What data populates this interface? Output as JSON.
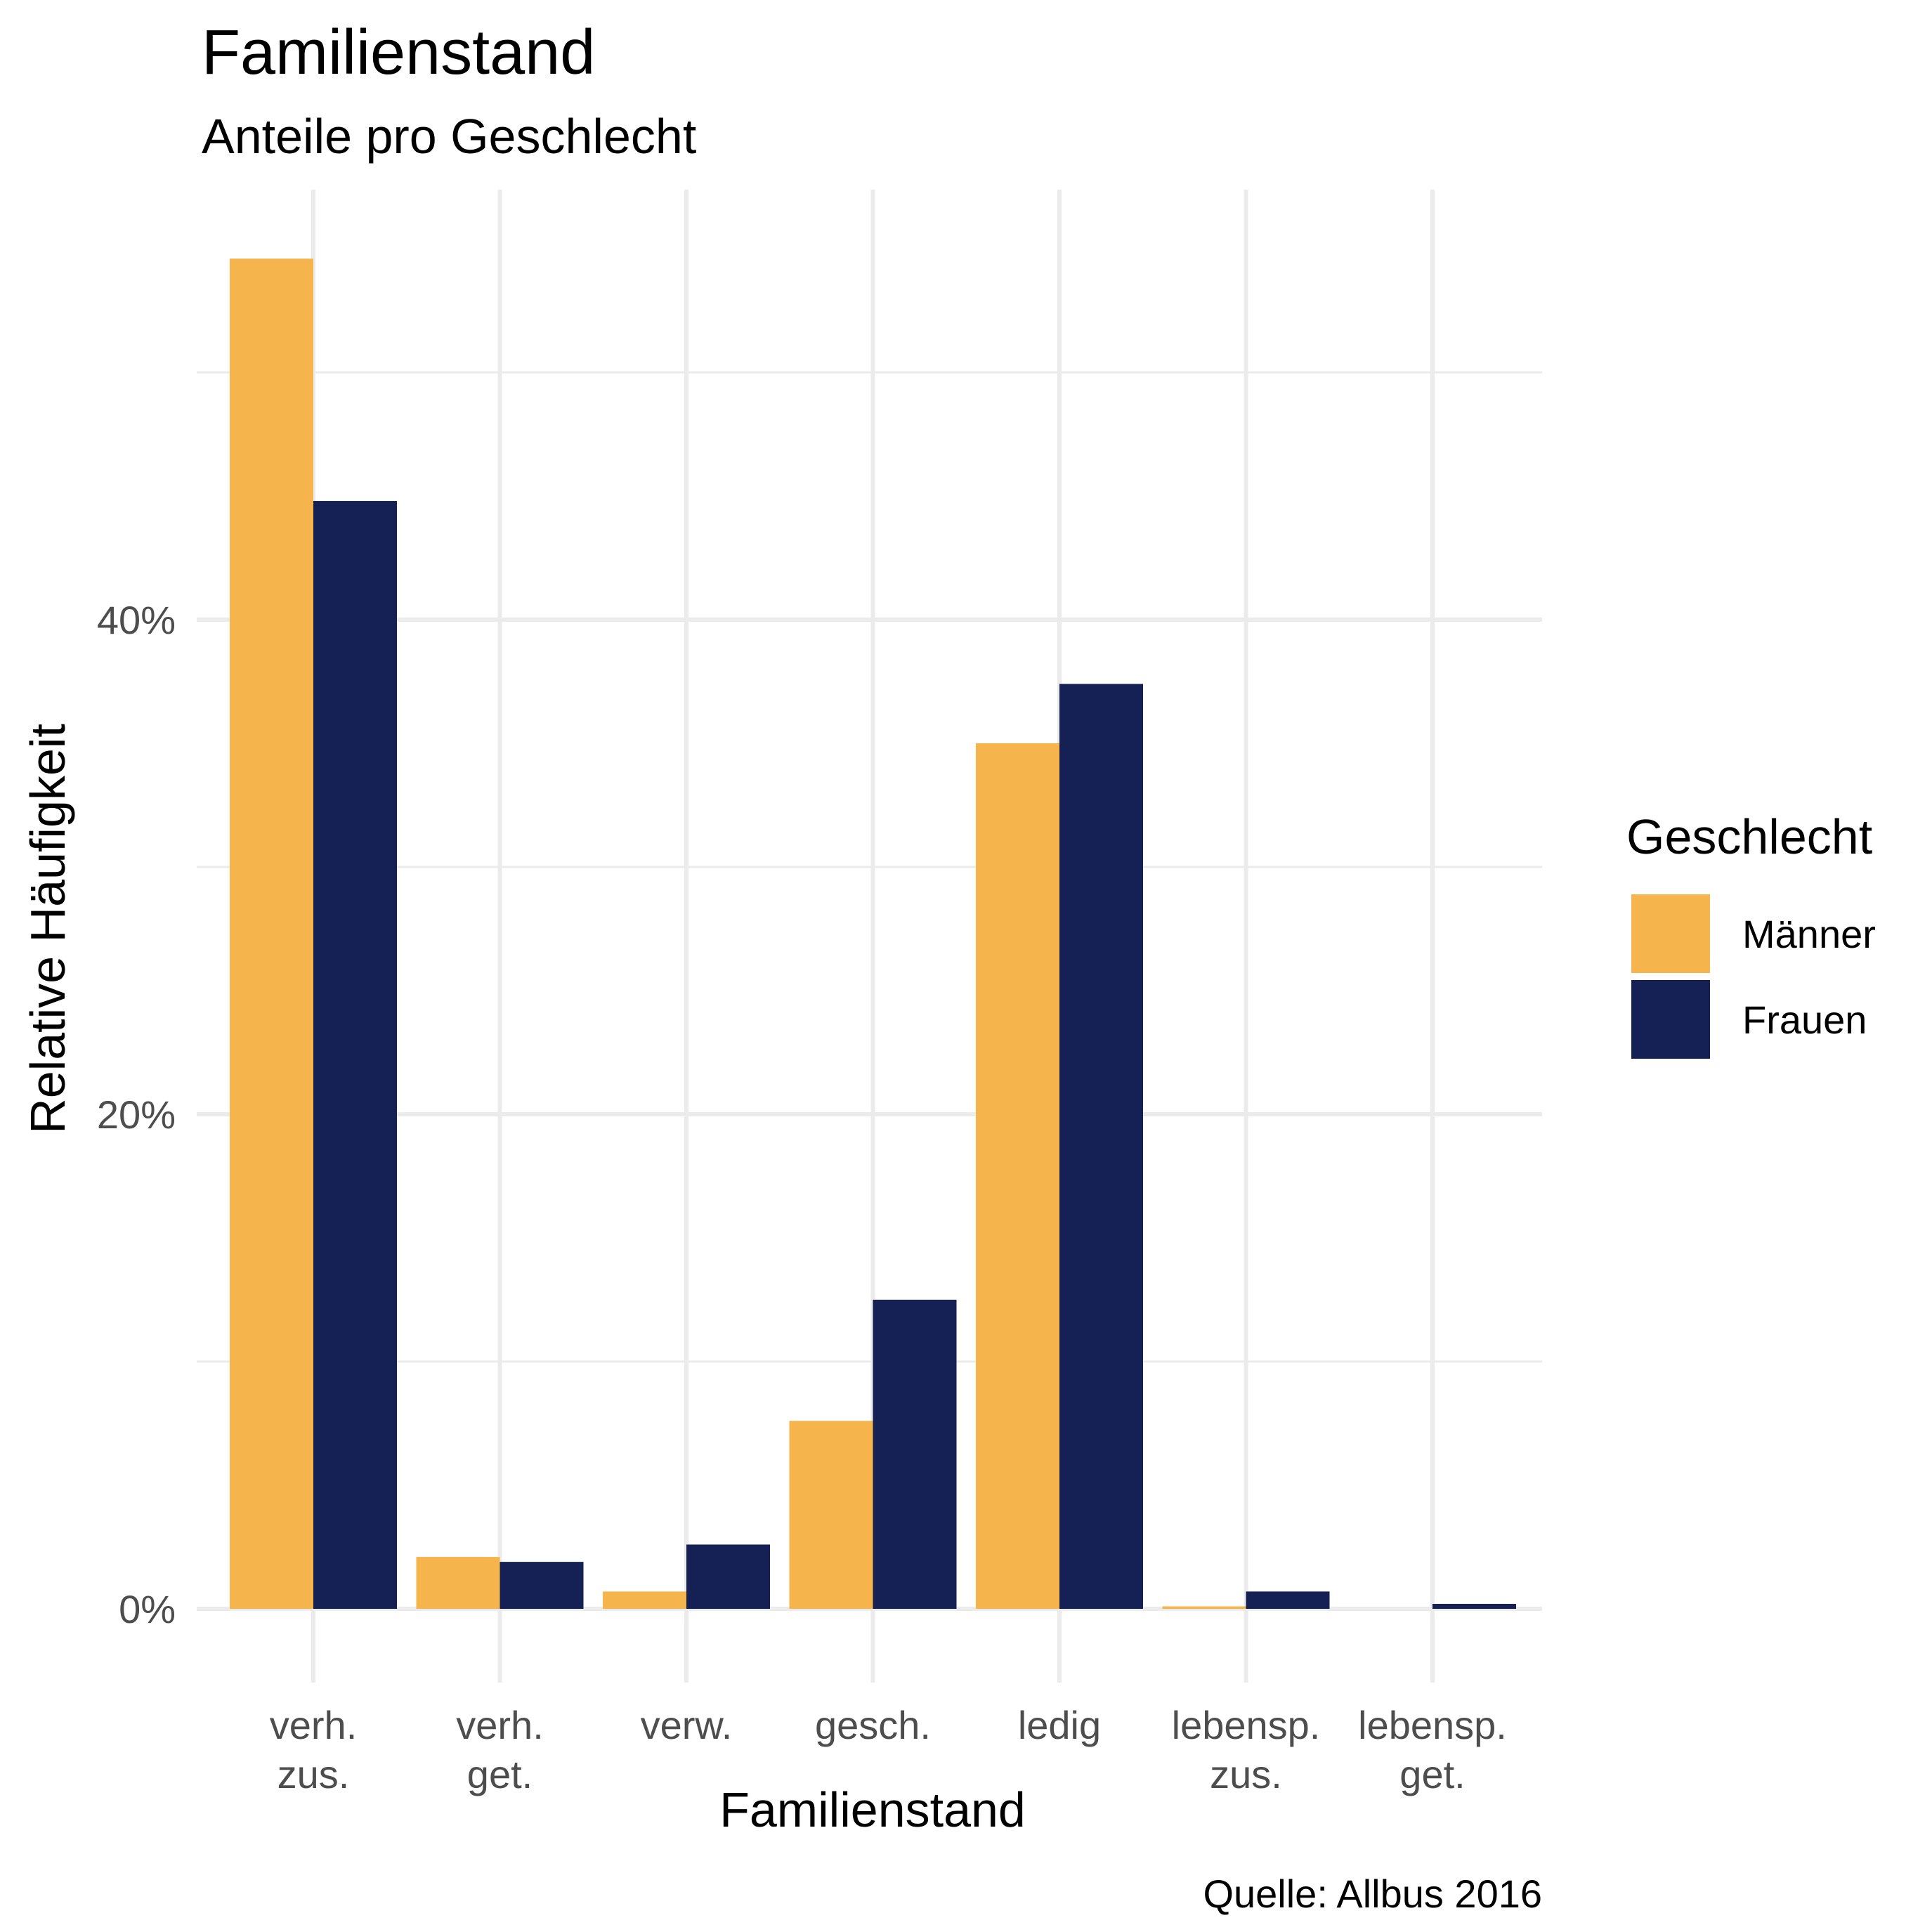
{
  "chart_data": {
    "type": "bar",
    "title": "Familienstand",
    "subtitle": "Anteile pro Geschlecht",
    "xlabel": "Familienstand",
    "ylabel": "Relative Häufigkeit",
    "caption": "Quelle: Allbus 2016",
    "categories": [
      [
        "verh.",
        "zus."
      ],
      [
        "verh.",
        "get."
      ],
      [
        "verw."
      ],
      [
        "gesch."
      ],
      [
        "ledig"
      ],
      [
        "lebensp.",
        "zus."
      ],
      [
        "lebensp.",
        "get."
      ]
    ],
    "series": [
      {
        "name": "Männer",
        "color": "#F5B54C",
        "values": [
          54.6,
          2.1,
          0.7,
          7.6,
          35.0,
          0.1,
          0.0
        ]
      },
      {
        "name": "Frauen",
        "color": "#152154",
        "values": [
          44.8,
          1.9,
          2.6,
          12.5,
          37.4,
          0.7,
          0.2
        ]
      }
    ],
    "ylim": [
      0,
      58
    ],
    "y_ticks": [
      {
        "value": 0,
        "label": "0%"
      },
      {
        "value": 20,
        "label": "20%"
      },
      {
        "value": 40,
        "label": "40%"
      }
    ],
    "y_minor_ticks": [
      10,
      30,
      50
    ],
    "grid": true,
    "legend": {
      "title": "Geschlecht",
      "position": "right"
    },
    "colors": {
      "grid": "#EBEBEB",
      "tick_text": "#4d4d4d",
      "background": "#FFFFFF"
    }
  }
}
